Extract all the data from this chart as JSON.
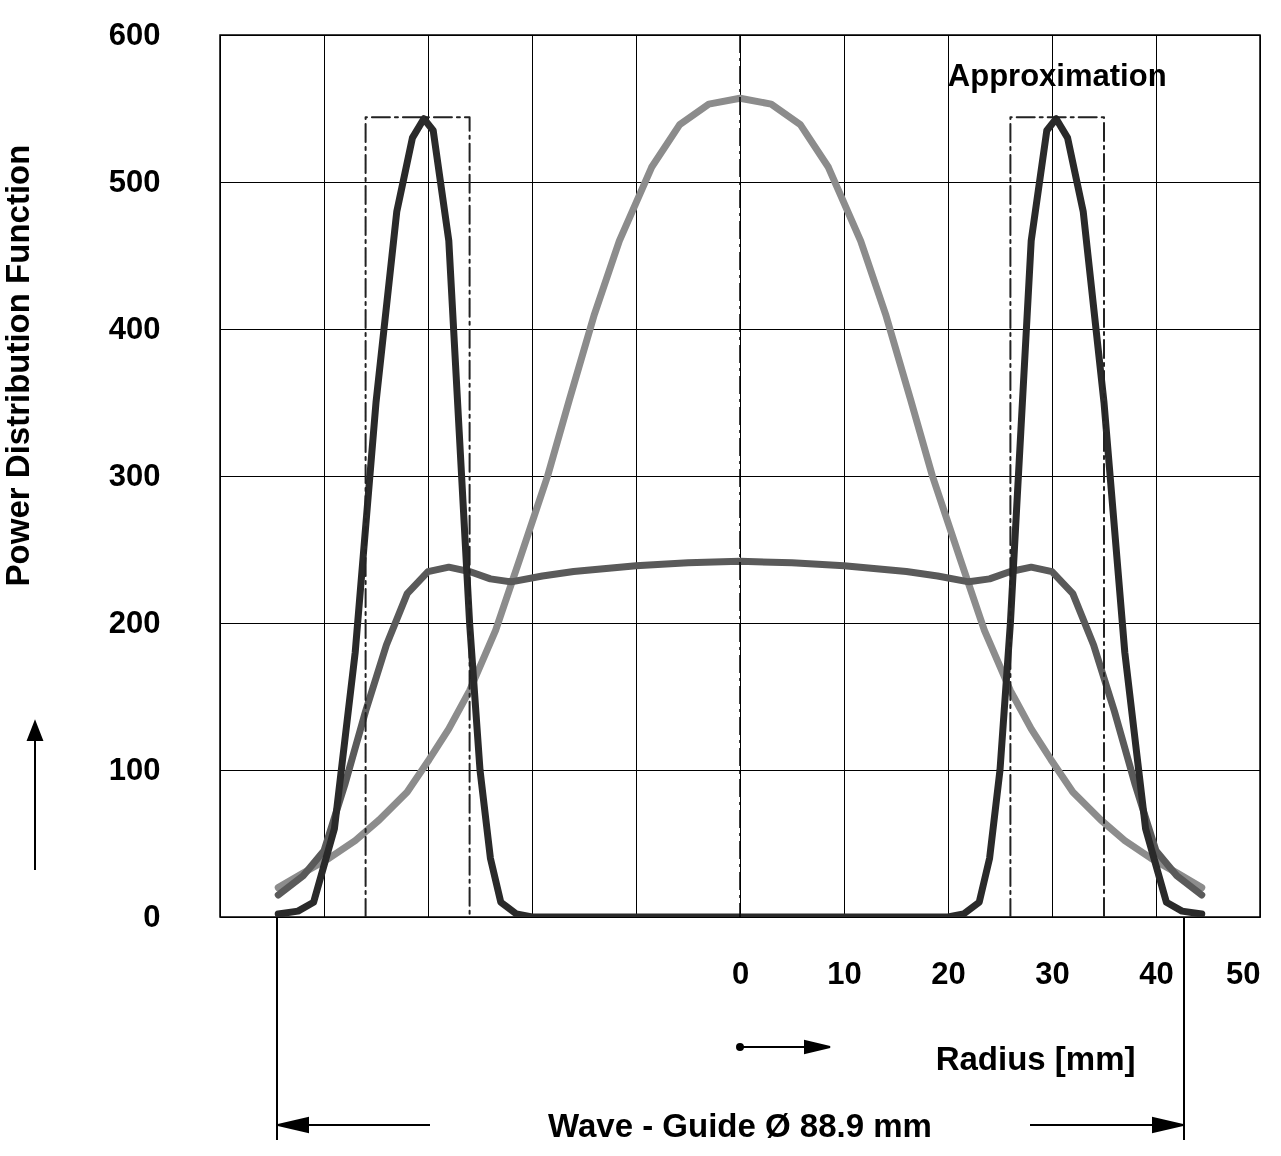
{
  "chart_data": {
    "type": "line",
    "xlabel": "Radius [mm]",
    "ylabel": "Power Distribution Function",
    "annotations": [
      "Wave - Guide  Ø 88.9 mm"
    ],
    "xlim": [
      -50,
      50
    ],
    "xticks": [
      {
        "value": -50,
        "label": null
      },
      {
        "value": -40,
        "label": null
      },
      {
        "value": -30,
        "label": null
      },
      {
        "value": -20,
        "label": null
      },
      {
        "value": -10,
        "label": null
      },
      0,
      10,
      20,
      30,
      40,
      50
    ],
    "ylim": [
      0,
      600
    ],
    "yticks": [
      0,
      100,
      200,
      300,
      400,
      500,
      600
    ],
    "grid": true,
    "marker": "none",
    "line_style": "solid",
    "ref_lines": [
      {
        "axis": "x",
        "value": 0,
        "label": null,
        "line_style": "dashed",
        "color": "#000000"
      }
    ],
    "series": [
      {
        "color": "#8c8c8c",
        "x": [
          -44.4,
          -42,
          -39.5,
          -37,
          -34.7,
          -32,
          -29.9,
          -28,
          -26,
          -23.5,
          -21.2,
          -18.5,
          -16.4,
          -14,
          -11.6,
          -8.5,
          -5.8,
          -3,
          0,
          3,
          5.8,
          8.5,
          11.6,
          14,
          16.4,
          18.5,
          21.2,
          23.5,
          26,
          28,
          29.9,
          32,
          34.7,
          37,
          39.5,
          42,
          44.4
        ],
        "values": [
          20,
          30,
          40,
          52,
          66,
          85,
          107,
          128,
          154,
          195,
          243,
          300,
          352,
          410,
          460,
          510,
          539,
          553,
          557,
          553,
          539,
          510,
          460,
          410,
          352,
          300,
          243,
          195,
          154,
          128,
          107,
          85,
          66,
          52,
          40,
          30,
          20
        ]
      },
      {
        "color": "#5a5a5a",
        "x": [
          -44.4,
          -42,
          -40,
          -38,
          -36,
          -34,
          -32,
          -30,
          -28,
          -26,
          -24,
          -22,
          -19,
          -16,
          -10,
          -5,
          0,
          5,
          10,
          16,
          19,
          22,
          24,
          26,
          28,
          30,
          32,
          34,
          36,
          38,
          40,
          42,
          44.4
        ],
        "values": [
          15,
          28,
          45,
          90,
          140,
          185,
          220,
          235,
          238,
          235,
          230,
          228,
          232,
          235,
          239,
          241,
          242,
          241,
          239,
          235,
          232,
          228,
          230,
          235,
          238,
          235,
          220,
          185,
          140,
          90,
          45,
          28,
          15
        ]
      },
      {
        "color": "#2a2a2a",
        "x": [
          -44.4,
          -42.5,
          -41,
          -39,
          -37,
          -35,
          -33,
          -31.5,
          -30.4,
          -29.5,
          -28,
          -27,
          -26,
          -25,
          -24,
          -23,
          -21.5,
          -20,
          0,
          20,
          21.5,
          23,
          24,
          25,
          26,
          27,
          28,
          29.5,
          30.4,
          31.5,
          33,
          35,
          37,
          39,
          41,
          42.5,
          44.4
        ],
        "values": [
          2,
          4,
          10,
          60,
          180,
          350,
          480,
          530,
          543,
          535,
          460,
          330,
          200,
          100,
          40,
          10,
          2,
          0,
          0,
          0,
          2,
          10,
          40,
          100,
          200,
          330,
          460,
          535,
          543,
          530,
          480,
          350,
          180,
          60,
          10,
          4,
          2
        ]
      },
      {
        "name": "Approximation",
        "color": "#222222",
        "line_style": "dashed",
        "x": [
          -36,
          -36,
          -26,
          -26,
          null,
          26,
          26,
          35,
          35
        ],
        "values": [
          0,
          544,
          544,
          0,
          null,
          0,
          544,
          544,
          0
        ]
      }
    ]
  }
}
